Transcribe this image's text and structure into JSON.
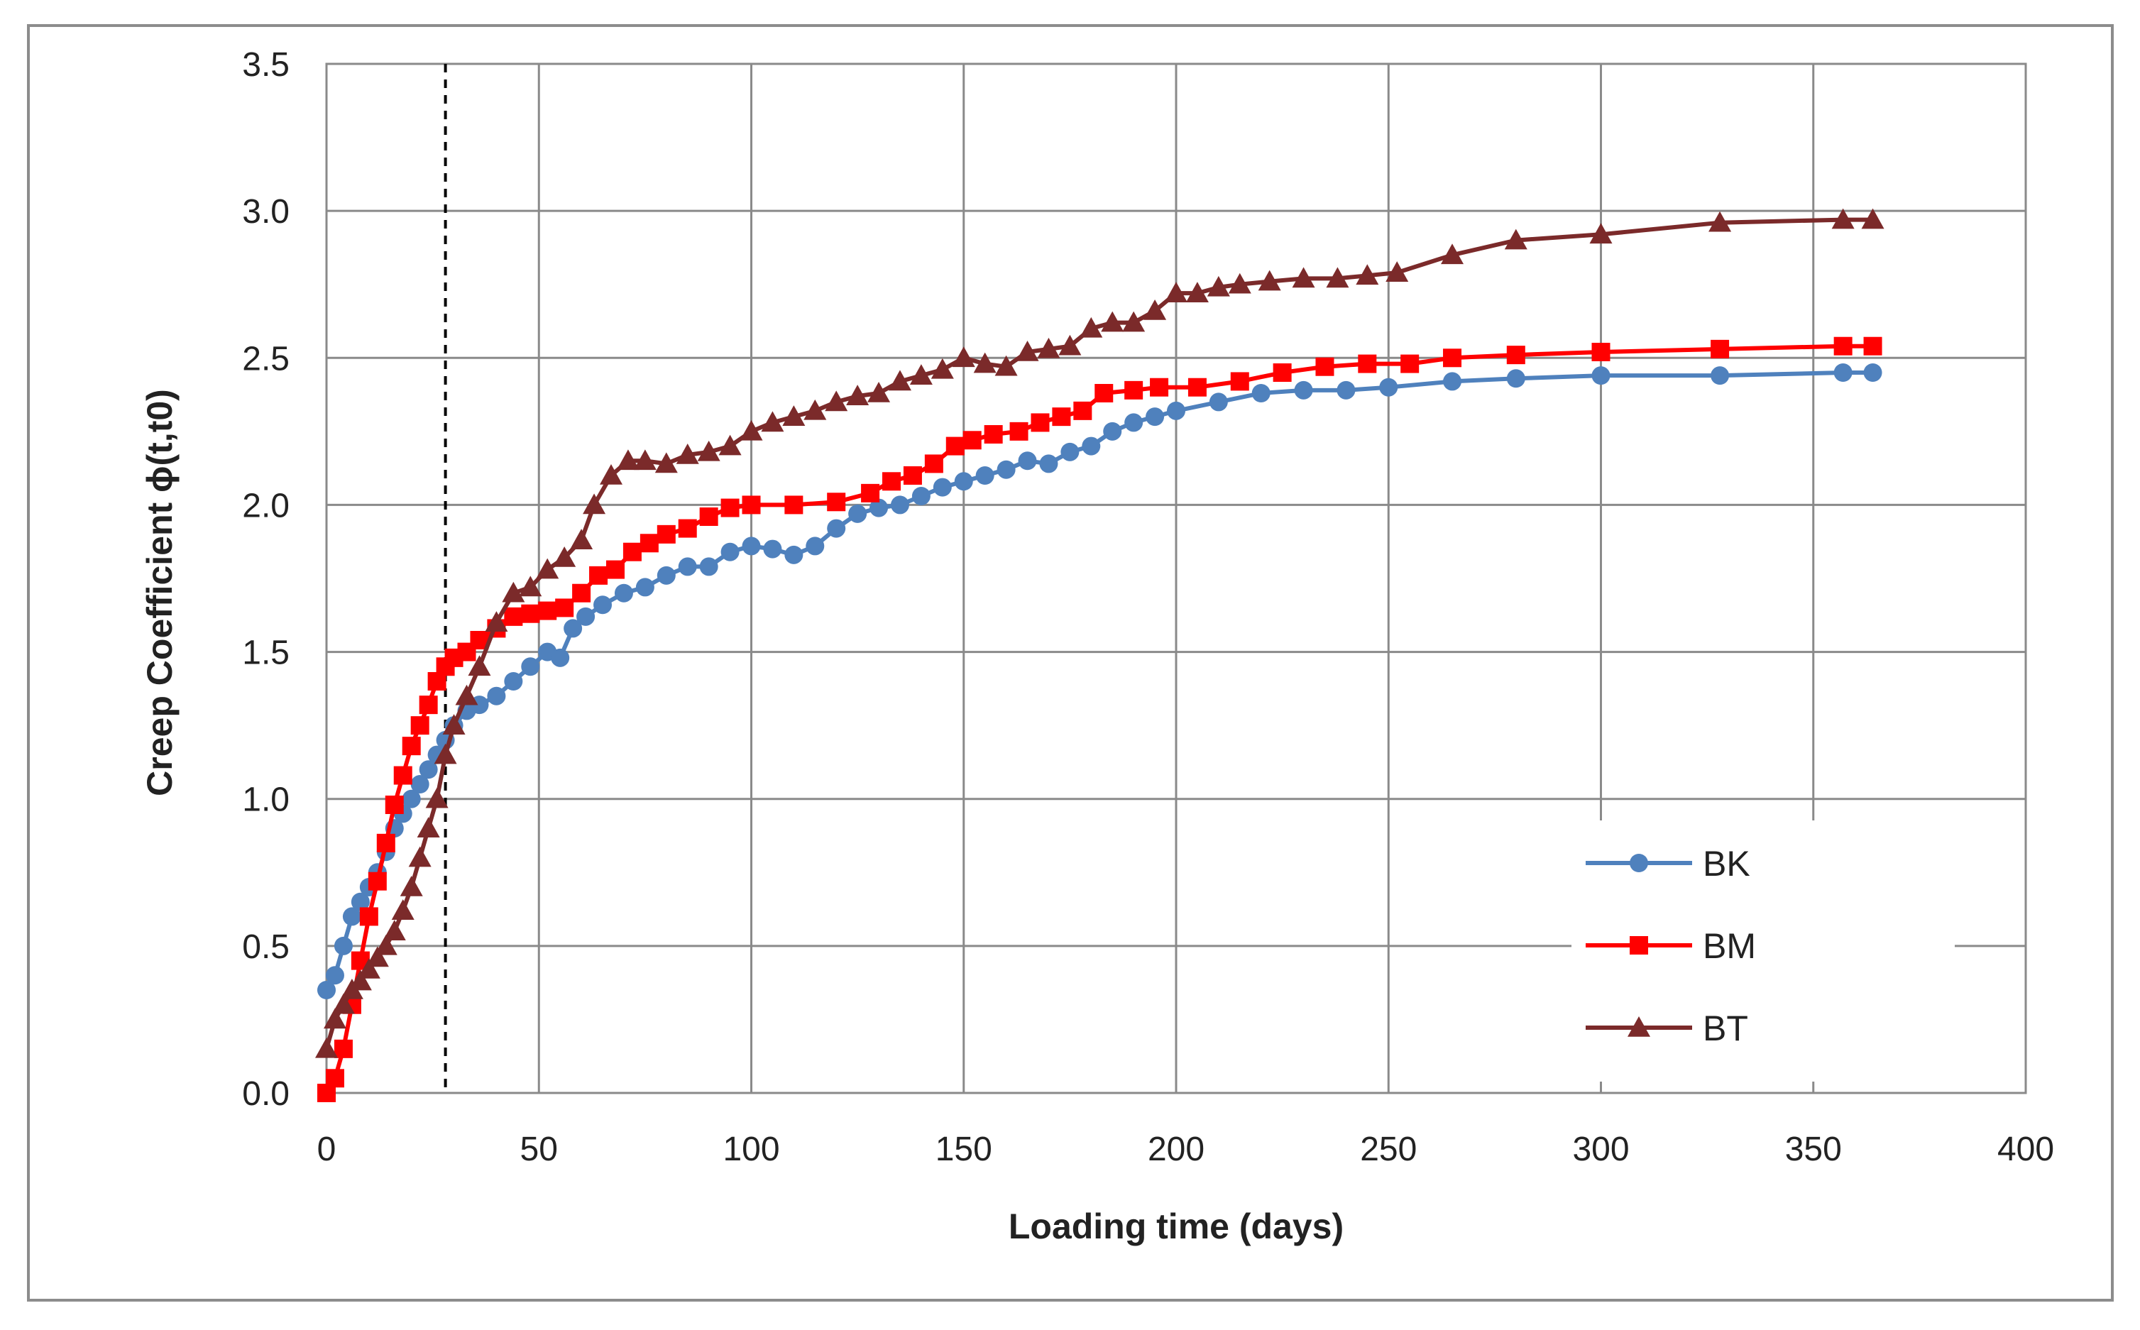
{
  "chart_data": {
    "type": "line",
    "xlabel": "Loading time (days)",
    "ylabel": "Creep Coefficient  ϕ(t,t0)",
    "xlim": [
      0,
      400
    ],
    "ylim": [
      0,
      3.5
    ],
    "x_ticks": [
      "0",
      "50",
      "100",
      "150",
      "200",
      "250",
      "300",
      "350",
      "400"
    ],
    "y_ticks": [
      "0.0",
      "0.5",
      "1.0",
      "1.5",
      "2.0",
      "2.5",
      "3.0",
      "3.5"
    ],
    "grid": true,
    "legend_position": "bottom-right",
    "reference_line": {
      "x": 28,
      "style": "dashed"
    },
    "series": [
      {
        "name": "BK",
        "color": "#4f81bd",
        "marker": "circle",
        "points": [
          [
            0,
            0.35
          ],
          [
            2,
            0.4
          ],
          [
            4,
            0.5
          ],
          [
            6,
            0.6
          ],
          [
            8,
            0.65
          ],
          [
            10,
            0.7
          ],
          [
            12,
            0.75
          ],
          [
            14,
            0.82
          ],
          [
            16,
            0.9
          ],
          [
            18,
            0.95
          ],
          [
            20,
            1.0
          ],
          [
            22,
            1.05
          ],
          [
            24,
            1.1
          ],
          [
            26,
            1.15
          ],
          [
            28,
            1.2
          ],
          [
            30,
            1.25
          ],
          [
            33,
            1.3
          ],
          [
            36,
            1.32
          ],
          [
            40,
            1.35
          ],
          [
            44,
            1.4
          ],
          [
            48,
            1.45
          ],
          [
            52,
            1.5
          ],
          [
            55,
            1.48
          ],
          [
            58,
            1.58
          ],
          [
            61,
            1.62
          ],
          [
            65,
            1.66
          ],
          [
            70,
            1.7
          ],
          [
            75,
            1.72
          ],
          [
            80,
            1.76
          ],
          [
            85,
            1.79
          ],
          [
            90,
            1.79
          ],
          [
            95,
            1.84
          ],
          [
            100,
            1.86
          ],
          [
            105,
            1.85
          ],
          [
            110,
            1.83
          ],
          [
            115,
            1.86
          ],
          [
            120,
            1.92
          ],
          [
            125,
            1.97
          ],
          [
            130,
            1.99
          ],
          [
            135,
            2.0
          ],
          [
            140,
            2.03
          ],
          [
            145,
            2.06
          ],
          [
            150,
            2.08
          ],
          [
            155,
            2.1
          ],
          [
            160,
            2.12
          ],
          [
            165,
            2.15
          ],
          [
            170,
            2.14
          ],
          [
            175,
            2.18
          ],
          [
            180,
            2.2
          ],
          [
            185,
            2.25
          ],
          [
            190,
            2.28
          ],
          [
            195,
            2.3
          ],
          [
            200,
            2.32
          ],
          [
            210,
            2.35
          ],
          [
            220,
            2.38
          ],
          [
            230,
            2.39
          ],
          [
            240,
            2.39
          ],
          [
            250,
            2.4
          ],
          [
            265,
            2.42
          ],
          [
            280,
            2.43
          ],
          [
            300,
            2.44
          ],
          [
            328,
            2.44
          ],
          [
            357,
            2.45
          ],
          [
            364,
            2.45
          ]
        ]
      },
      {
        "name": "BM",
        "color": "#ff0000",
        "marker": "square",
        "points": [
          [
            0,
            0.0
          ],
          [
            2,
            0.05
          ],
          [
            4,
            0.15
          ],
          [
            6,
            0.3
          ],
          [
            8,
            0.45
          ],
          [
            10,
            0.6
          ],
          [
            12,
            0.72
          ],
          [
            14,
            0.85
          ],
          [
            16,
            0.98
          ],
          [
            18,
            1.08
          ],
          [
            20,
            1.18
          ],
          [
            22,
            1.25
          ],
          [
            24,
            1.32
          ],
          [
            26,
            1.4
          ],
          [
            28,
            1.45
          ],
          [
            30,
            1.48
          ],
          [
            33,
            1.5
          ],
          [
            36,
            1.54
          ],
          [
            40,
            1.58
          ],
          [
            44,
            1.62
          ],
          [
            48,
            1.63
          ],
          [
            52,
            1.64
          ],
          [
            56,
            1.65
          ],
          [
            60,
            1.7
          ],
          [
            64,
            1.76
          ],
          [
            68,
            1.78
          ],
          [
            72,
            1.84
          ],
          [
            76,
            1.87
          ],
          [
            80,
            1.9
          ],
          [
            85,
            1.92
          ],
          [
            90,
            1.96
          ],
          [
            95,
            1.99
          ],
          [
            100,
            2.0
          ],
          [
            110,
            2.0
          ],
          [
            120,
            2.01
          ],
          [
            128,
            2.04
          ],
          [
            133,
            2.08
          ],
          [
            138,
            2.1
          ],
          [
            143,
            2.14
          ],
          [
            148,
            2.2
          ],
          [
            152,
            2.22
          ],
          [
            157,
            2.24
          ],
          [
            163,
            2.25
          ],
          [
            168,
            2.28
          ],
          [
            173,
            2.3
          ],
          [
            178,
            2.32
          ],
          [
            183,
            2.38
          ],
          [
            190,
            2.39
          ],
          [
            196,
            2.4
          ],
          [
            205,
            2.4
          ],
          [
            215,
            2.42
          ],
          [
            225,
            2.45
          ],
          [
            235,
            2.47
          ],
          [
            245,
            2.48
          ],
          [
            255,
            2.48
          ],
          [
            265,
            2.5
          ],
          [
            280,
            2.51
          ],
          [
            300,
            2.52
          ],
          [
            328,
            2.53
          ],
          [
            357,
            2.54
          ],
          [
            364,
            2.54
          ]
        ]
      },
      {
        "name": "BT",
        "color": "#7b2a2a",
        "marker": "triangle",
        "points": [
          [
            0,
            0.15
          ],
          [
            2,
            0.25
          ],
          [
            4,
            0.3
          ],
          [
            6,
            0.35
          ],
          [
            8,
            0.38
          ],
          [
            10,
            0.42
          ],
          [
            12,
            0.46
          ],
          [
            14,
            0.5
          ],
          [
            16,
            0.55
          ],
          [
            18,
            0.62
          ],
          [
            20,
            0.7
          ],
          [
            22,
            0.8
          ],
          [
            24,
            0.9
          ],
          [
            26,
            1.0
          ],
          [
            28,
            1.15
          ],
          [
            30,
            1.25
          ],
          [
            33,
            1.35
          ],
          [
            36,
            1.45
          ],
          [
            40,
            1.6
          ],
          [
            44,
            1.7
          ],
          [
            48,
            1.72
          ],
          [
            52,
            1.78
          ],
          [
            56,
            1.82
          ],
          [
            60,
            1.88
          ],
          [
            63,
            2.0
          ],
          [
            67,
            2.1
          ],
          [
            71,
            2.15
          ],
          [
            75,
            2.15
          ],
          [
            80,
            2.14
          ],
          [
            85,
            2.17
          ],
          [
            90,
            2.18
          ],
          [
            95,
            2.2
          ],
          [
            100,
            2.25
          ],
          [
            105,
            2.28
          ],
          [
            110,
            2.3
          ],
          [
            115,
            2.32
          ],
          [
            120,
            2.35
          ],
          [
            125,
            2.37
          ],
          [
            130,
            2.38
          ],
          [
            135,
            2.42
          ],
          [
            140,
            2.44
          ],
          [
            145,
            2.46
          ],
          [
            150,
            2.5
          ],
          [
            155,
            2.48
          ],
          [
            160,
            2.47
          ],
          [
            165,
            2.52
          ],
          [
            170,
            2.53
          ],
          [
            175,
            2.54
          ],
          [
            180,
            2.6
          ],
          [
            185,
            2.62
          ],
          [
            190,
            2.62
          ],
          [
            195,
            2.66
          ],
          [
            200,
            2.72
          ],
          [
            205,
            2.72
          ],
          [
            210,
            2.74
          ],
          [
            215,
            2.75
          ],
          [
            222,
            2.76
          ],
          [
            230,
            2.77
          ],
          [
            238,
            2.77
          ],
          [
            245,
            2.78
          ],
          [
            252,
            2.79
          ],
          [
            265,
            2.85
          ],
          [
            280,
            2.9
          ],
          [
            300,
            2.92
          ],
          [
            328,
            2.96
          ],
          [
            357,
            2.97
          ],
          [
            364,
            2.97
          ]
        ]
      }
    ]
  }
}
